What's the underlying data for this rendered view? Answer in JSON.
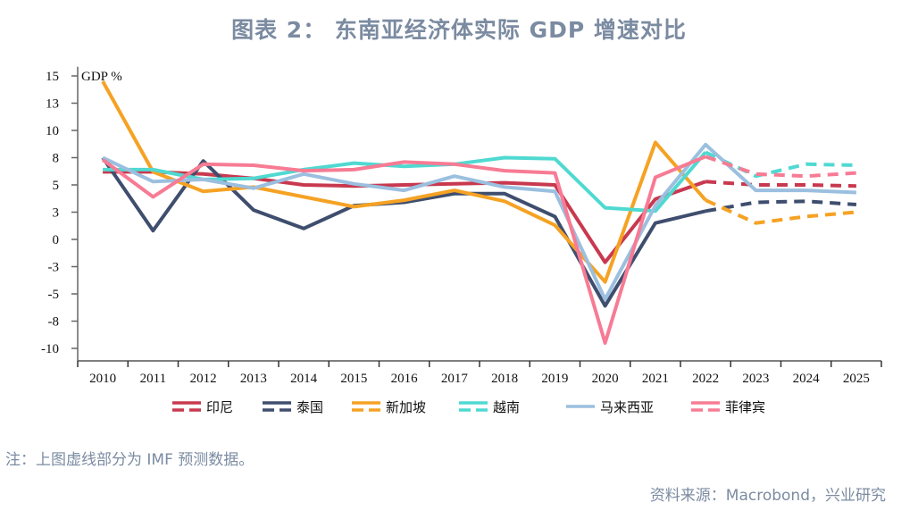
{
  "title": "图表 2： 东南亚经济体实际 GDP 增速对比",
  "note": "注：上图虚线部分为 IMF 预测数据。",
  "source": "资料来源：Macrobond，兴业研究",
  "chart_data": {
    "type": "line",
    "title": "图表 2： 东南亚经济体实际 GDP 增速对比",
    "unit_label": "GDP %",
    "xlabel": "",
    "ylabel": "GDP %",
    "categories": [
      "2010",
      "2011",
      "2012",
      "2013",
      "2014",
      "2015",
      "2016",
      "2017",
      "2018",
      "2019",
      "2020",
      "2021",
      "2022",
      "2023",
      "2024",
      "2025"
    ],
    "ylim": [
      -11,
      16
    ],
    "yticks": [
      15,
      12.5,
      10,
      7.5,
      5,
      2.5,
      0,
      -2.5,
      -5,
      -7.5,
      -10
    ],
    "ytick_labels": [
      "15",
      "13",
      "10",
      "8",
      "5",
      "3",
      "0",
      "-3",
      "-5",
      "-8",
      "-10"
    ],
    "forecast_start_index": 12,
    "grid": false,
    "legend_position": "bottom",
    "series": [
      {
        "name": "印尼",
        "color": "#c8394f",
        "forecast_dashed": true,
        "values": [
          6.2,
          6.2,
          6.0,
          5.6,
          5.0,
          4.9,
          5.0,
          5.1,
          5.2,
          5.0,
          -2.1,
          3.7,
          5.3,
          5.0,
          5.0,
          4.9
        ]
      },
      {
        "name": "泰国",
        "color": "#3f4e6e",
        "forecast_dashed": true,
        "values": [
          7.5,
          0.8,
          7.2,
          2.7,
          1.0,
          3.1,
          3.4,
          4.2,
          4.2,
          2.1,
          -6.1,
          1.5,
          2.6,
          3.4,
          3.5,
          3.2
        ]
      },
      {
        "name": "新加坡",
        "color": "#f5a224",
        "forecast_dashed": true,
        "values": [
          14.5,
          6.2,
          4.4,
          4.8,
          3.9,
          3.0,
          3.6,
          4.5,
          3.5,
          1.3,
          -3.9,
          8.9,
          3.6,
          1.5,
          2.1,
          2.5
        ]
      },
      {
        "name": "越南",
        "color": "#4fd9d1",
        "forecast_dashed": true,
        "values": [
          6.4,
          6.4,
          5.5,
          5.6,
          6.4,
          7.0,
          6.7,
          6.9,
          7.5,
          7.4,
          2.9,
          2.6,
          8.0,
          5.8,
          6.9,
          6.8
        ]
      },
      {
        "name": "马来西亚",
        "color": "#9bbfdf",
        "forecast_dashed": false,
        "values": [
          7.5,
          5.3,
          5.5,
          4.7,
          6.0,
          5.1,
          4.5,
          5.8,
          4.8,
          4.4,
          -5.5,
          3.1,
          8.7,
          4.5,
          4.5,
          4.3
        ]
      },
      {
        "name": "菲律宾",
        "color": "#f77b94",
        "forecast_dashed": true,
        "values": [
          7.3,
          3.9,
          6.9,
          6.8,
          6.3,
          6.4,
          7.1,
          6.9,
          6.3,
          6.1,
          -9.5,
          5.7,
          7.6,
          6.0,
          5.8,
          6.1
        ]
      }
    ]
  }
}
